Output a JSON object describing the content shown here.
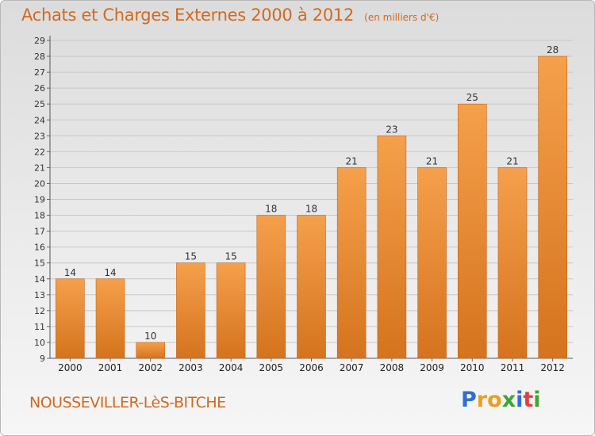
{
  "title": "Achats et Charges Externes 2000 à 2012",
  "subtitle": "(en milliers d'€)",
  "commune": "NOUSSEVILLER-LèS-BITCHE",
  "brand": {
    "letters": [
      "P",
      "r",
      "o",
      "x",
      "i",
      "t",
      "i"
    ],
    "colors": [
      "#2f6fd1",
      "#e8a020",
      "#e8a020",
      "#3fa535",
      "#2f6fd1",
      "#e04040",
      "#3fa535"
    ]
  },
  "colors": {
    "bar_top": "#f5a04c",
    "bar_bottom": "#d5731e",
    "title": "#d2691e",
    "grid": "#c8c8c8"
  },
  "chart_data": {
    "type": "bar",
    "title": "Achats et Charges Externes 2000 à 2012",
    "subtitle": "(en milliers d'€)",
    "categories": [
      "2000",
      "2001",
      "2002",
      "2003",
      "2004",
      "2005",
      "2006",
      "2007",
      "2008",
      "2009",
      "2010",
      "2011",
      "2012"
    ],
    "values": [
      14,
      14,
      10,
      15,
      15,
      18,
      18,
      21,
      23,
      21,
      25,
      21,
      28
    ],
    "ylim": [
      9,
      29
    ],
    "yticks": [
      9,
      10,
      11,
      12,
      13,
      14,
      15,
      16,
      17,
      18,
      19,
      20,
      21,
      22,
      23,
      24,
      25,
      26,
      27,
      28,
      29
    ],
    "grid": true,
    "legend": "none"
  }
}
